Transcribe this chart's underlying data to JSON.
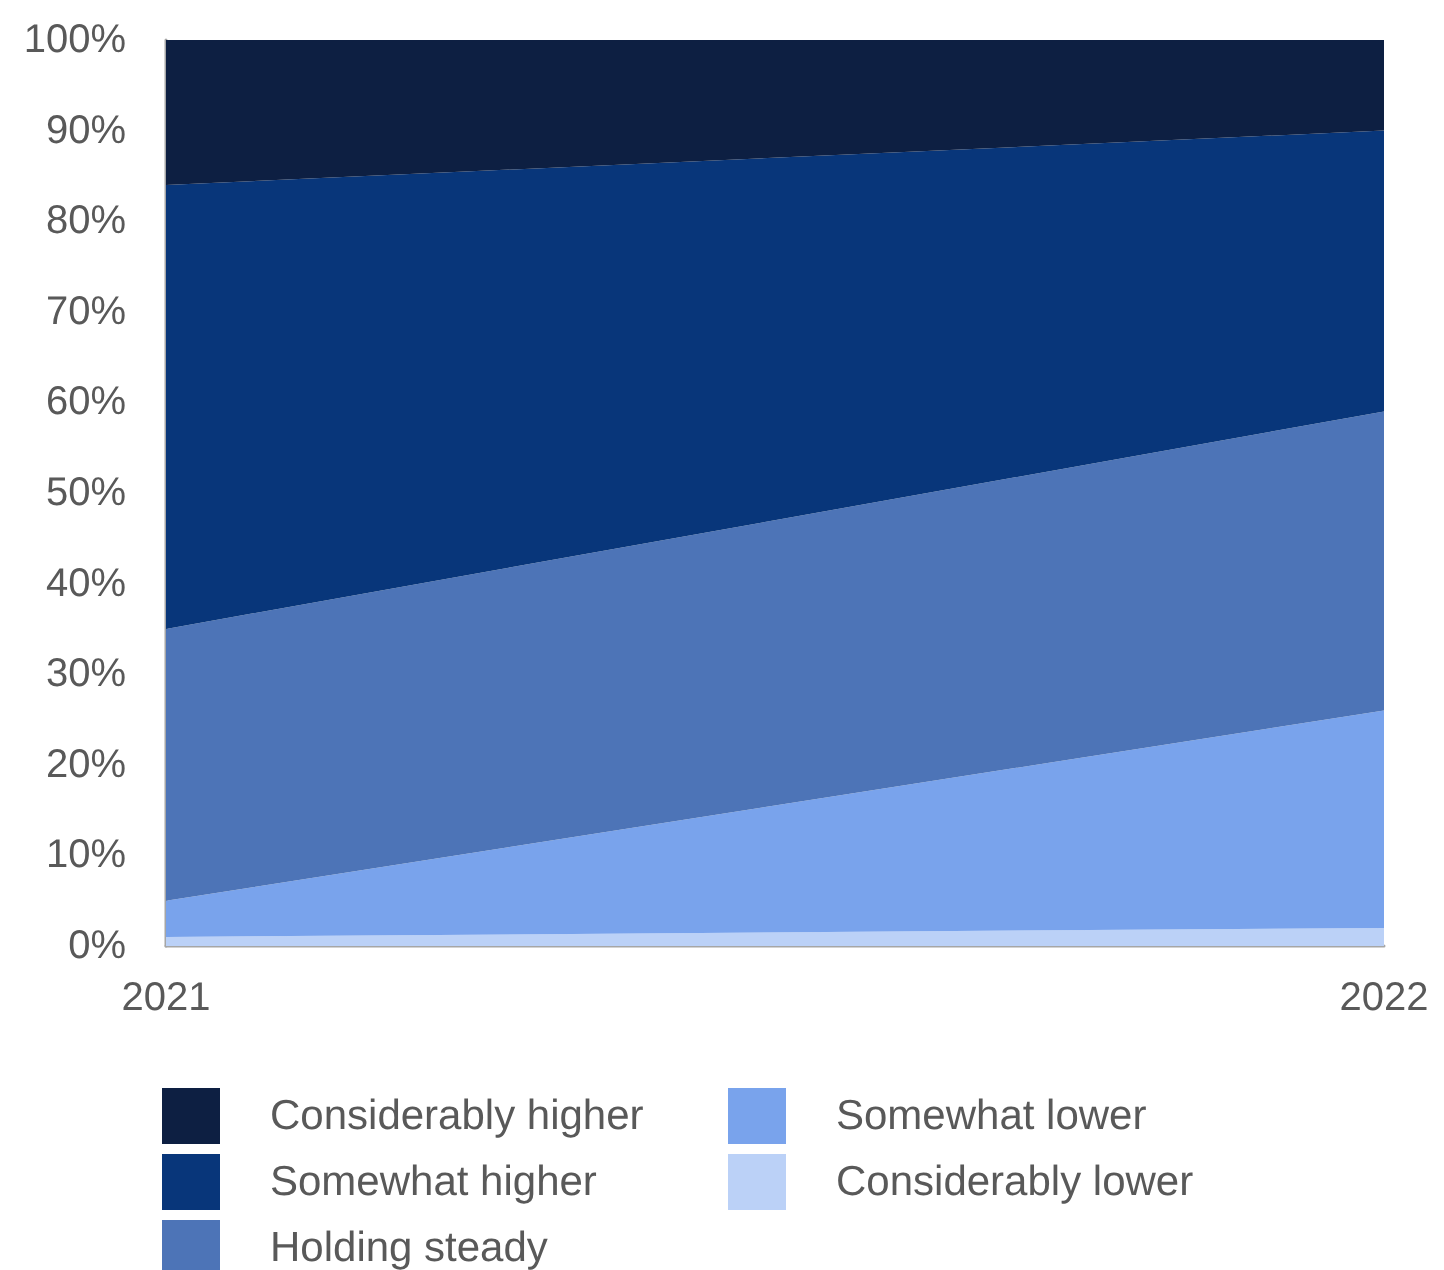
{
  "chart_data": {
    "type": "area",
    "stacked": true,
    "categories": [
      "2021",
      "2022"
    ],
    "series": [
      {
        "name": "Considerably lower",
        "color": "#bbd1f7",
        "values": [
          1,
          2
        ]
      },
      {
        "name": "Somewhat lower",
        "color": "#79a3ec",
        "values": [
          4,
          24
        ]
      },
      {
        "name": "Holding steady",
        "color": "#4d74b7",
        "values": [
          30,
          33
        ]
      },
      {
        "name": "Somewhat higher",
        "color": "#08367a",
        "values": [
          49,
          31
        ]
      },
      {
        "name": "Considerably higher",
        "color": "#0d1f42",
        "values": [
          16,
          10
        ]
      }
    ],
    "ylim": [
      0,
      100
    ],
    "yticks": [
      {
        "value": 0,
        "label": "0%"
      },
      {
        "value": 10,
        "label": "10%"
      },
      {
        "value": 20,
        "label": "20%"
      },
      {
        "value": 30,
        "label": "30%"
      },
      {
        "value": 40,
        "label": "40%"
      },
      {
        "value": 50,
        "label": "50%"
      },
      {
        "value": 60,
        "label": "60%"
      },
      {
        "value": 70,
        "label": "70%"
      },
      {
        "value": 80,
        "label": "80%"
      },
      {
        "value": 90,
        "label": "90%"
      },
      {
        "value": 100,
        "label": "100%"
      }
    ],
    "legend": "bottom"
  }
}
